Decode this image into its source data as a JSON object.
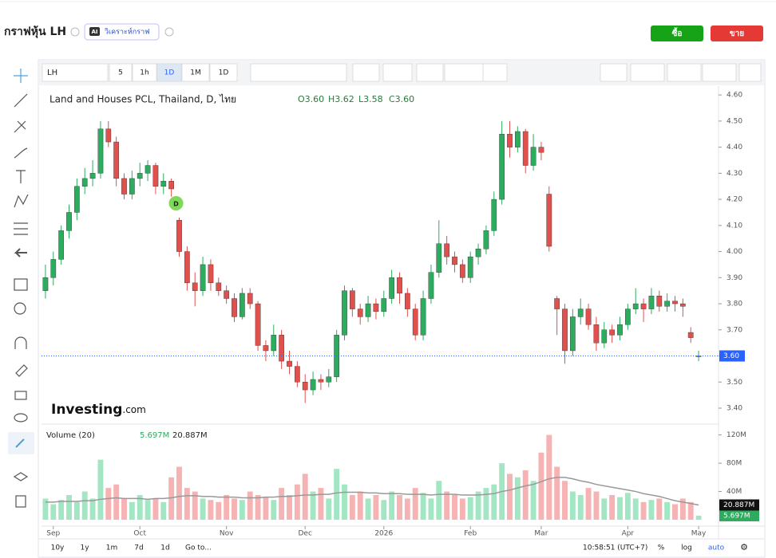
{
  "header": {
    "title": "กราฟหุ้น LH",
    "ai_badge": "AI",
    "ai_button": "วิเคราะห์กราฟ",
    "buy": "ซื้อ",
    "sell": "ขาย"
  },
  "toolbar": {
    "symbol": "LH",
    "intervals": [
      "5",
      "1h",
      "1D",
      "1M",
      "1D"
    ]
  },
  "chart_data": {
    "type": "candlestick",
    "title": "Land and Houses PCL, Thailand, D, ไทย",
    "ohlc_labels": [
      "O3.60",
      "H3.62",
      "L3.58",
      "C3.60"
    ],
    "event_marker": "D",
    "logo_main": "Investing",
    "logo_suffix": ".com",
    "up_color": "#2dab5f",
    "down_color": "#e0504d",
    "volume_up_color": "#a3e6c4",
    "volume_down_color": "#f6b3b3",
    "ma_color": "#999999",
    "grid": false,
    "xlim": [
      -0.5,
      83.5
    ],
    "xticks": [
      {
        "value": 1,
        "label": "Sep"
      },
      {
        "value": 12,
        "label": "Oct"
      },
      {
        "value": 23,
        "label": "Nov"
      },
      {
        "value": 33,
        "label": "Dec"
      },
      {
        "value": 43,
        "label": "2026"
      },
      {
        "value": 54,
        "label": "Feb"
      },
      {
        "value": 63,
        "label": "Mar"
      },
      {
        "value": 74,
        "label": "Apr"
      },
      {
        "value": 83,
        "label": "May"
      }
    ],
    "ylim": [
      3.345,
      4.634
    ],
    "yticks": [
      {
        "value": 4.6,
        "label": "4.60"
      },
      {
        "value": 4.5,
        "label": "4.50"
      },
      {
        "value": 4.4,
        "label": "4.40"
      },
      {
        "value": 4.3,
        "label": "4.30"
      },
      {
        "value": 4.2,
        "label": "4.20"
      },
      {
        "value": 4.1,
        "label": "4.10"
      },
      {
        "value": 4.0,
        "label": "4.00"
      },
      {
        "value": 3.9,
        "label": "3.90"
      },
      {
        "value": 3.8,
        "label": "3.80"
      },
      {
        "value": 3.7,
        "label": "3.70"
      },
      {
        "value": 3.6,
        "label": "3.60"
      },
      {
        "value": 3.5,
        "label": "3.50"
      },
      {
        "value": 3.4,
        "label": "3.40"
      }
    ],
    "last_price": {
      "value": 3.6,
      "label": "3.60"
    },
    "open": [
      3.85,
      3.9,
      3.97,
      4.08,
      4.15,
      4.25,
      4.28,
      4.3,
      4.47,
      4.42,
      4.28,
      4.22,
      4.28,
      4.3,
      4.33,
      4.25,
      4.27,
      4.12,
      4.0,
      3.88,
      3.85,
      3.95,
      3.88,
      3.85,
      3.82,
      3.75,
      3.84,
      3.8,
      3.64,
      3.62,
      3.68,
      3.58,
      3.56,
      3.5,
      3.47,
      3.51,
      3.5,
      3.52,
      3.68,
      3.85,
      3.78,
      3.75,
      3.8,
      3.77,
      3.82,
      3.9,
      3.84,
      3.78,
      3.68,
      3.82,
      3.92,
      4.03,
      3.98,
      3.95,
      3.9,
      3.98,
      4.01,
      4.08,
      4.2,
      4.45,
      4.4,
      4.46,
      4.33,
      4.4,
      4.22,
      3.82,
      3.78,
      3.62,
      3.75,
      3.78,
      3.72,
      3.65,
      3.7,
      3.68,
      3.72,
      3.78,
      3.8,
      3.78,
      3.83,
      3.79,
      3.81,
      3.8,
      3.69,
      3.6
    ],
    "high": [
      3.95,
      4.0,
      4.1,
      4.18,
      4.28,
      4.32,
      4.35,
      4.5,
      4.5,
      4.44,
      4.3,
      4.31,
      4.34,
      4.35,
      4.34,
      4.3,
      4.28,
      4.13,
      4.02,
      3.92,
      3.98,
      3.97,
      3.9,
      3.87,
      3.84,
      3.86,
      3.86,
      3.81,
      3.66,
      3.72,
      3.7,
      3.62,
      3.58,
      3.53,
      3.54,
      3.53,
      3.55,
      3.7,
      3.87,
      3.86,
      3.8,
      3.83,
      3.82,
      3.85,
      3.93,
      3.92,
      3.86,
      3.8,
      3.85,
      3.95,
      4.12,
      4.06,
      4.0,
      3.97,
      4.0,
      4.03,
      4.1,
      4.23,
      4.5,
      4.5,
      4.48,
      4.47,
      4.45,
      4.42,
      4.25,
      3.83,
      3.8,
      3.78,
      3.82,
      3.8,
      3.75,
      3.73,
      3.72,
      3.75,
      3.8,
      3.86,
      3.82,
      3.86,
      3.85,
      3.84,
      3.83,
      3.82,
      3.71,
      3.62
    ],
    "low": [
      3.82,
      3.87,
      3.95,
      4.05,
      4.12,
      4.22,
      4.25,
      4.28,
      4.4,
      4.25,
      4.2,
      4.2,
      4.25,
      4.27,
      4.22,
      4.22,
      4.21,
      3.98,
      3.85,
      3.79,
      3.83,
      3.85,
      3.83,
      3.8,
      3.73,
      3.74,
      3.78,
      3.62,
      3.58,
      3.6,
      3.55,
      3.53,
      3.48,
      3.42,
      3.45,
      3.47,
      3.48,
      3.5,
      3.66,
      3.75,
      3.72,
      3.73,
      3.74,
      3.75,
      3.8,
      3.8,
      3.75,
      3.66,
      3.66,
      3.8,
      3.9,
      3.95,
      3.92,
      3.88,
      3.88,
      3.95,
      3.99,
      4.06,
      4.18,
      4.36,
      4.38,
      4.3,
      4.31,
      4.35,
      4.0,
      3.68,
      3.57,
      3.6,
      3.72,
      3.7,
      3.62,
      3.63,
      3.65,
      3.66,
      3.7,
      3.76,
      3.73,
      3.76,
      3.77,
      3.77,
      3.77,
      3.75,
      3.65,
      3.58
    ],
    "close": [
      3.9,
      3.97,
      4.08,
      4.15,
      4.25,
      4.28,
      4.3,
      4.47,
      4.42,
      4.28,
      4.22,
      4.28,
      4.3,
      4.33,
      4.25,
      4.27,
      4.24,
      4.0,
      3.88,
      3.85,
      3.95,
      3.88,
      3.85,
      3.82,
      3.75,
      3.84,
      3.8,
      3.64,
      3.62,
      3.68,
      3.58,
      3.56,
      3.5,
      3.47,
      3.51,
      3.5,
      3.52,
      3.68,
      3.85,
      3.78,
      3.75,
      3.8,
      3.77,
      3.82,
      3.9,
      3.84,
      3.78,
      3.68,
      3.82,
      3.92,
      4.03,
      3.98,
      3.95,
      3.9,
      3.98,
      4.01,
      4.08,
      4.2,
      4.45,
      4.4,
      4.46,
      4.33,
      4.4,
      4.38,
      4.02,
      3.78,
      3.62,
      3.75,
      3.78,
      3.72,
      3.65,
      3.7,
      3.68,
      3.72,
      3.78,
      3.8,
      3.78,
      3.83,
      3.79,
      3.81,
      3.8,
      3.79,
      3.67,
      3.6
    ],
    "volume_title": "Volume (20)",
    "volume_legend": [
      {
        "value": 5.697,
        "label": "5.697M"
      },
      {
        "value": 20.887,
        "label": "20.887M"
      }
    ],
    "volume_ylim": [
      -9,
      132
    ],
    "volume_ticks": [
      {
        "value": 120,
        "label": "120M"
      },
      {
        "value": 80,
        "label": "80M"
      },
      {
        "value": 40,
        "label": "40M"
      }
    ],
    "volume": [
      30,
      22,
      28,
      35,
      25,
      40,
      30,
      85,
      45,
      50,
      30,
      25,
      35,
      28,
      30,
      25,
      60,
      75,
      45,
      40,
      30,
      28,
      25,
      35,
      30,
      28,
      40,
      35,
      32,
      28,
      45,
      35,
      50,
      65,
      40,
      45,
      30,
      72,
      50,
      35,
      40,
      30,
      35,
      28,
      40,
      35,
      30,
      45,
      38,
      30,
      55,
      40,
      35,
      30,
      32,
      40,
      45,
      50,
      80,
      65,
      60,
      70,
      55,
      95,
      120,
      75,
      55,
      40,
      35,
      45,
      40,
      30,
      35,
      32,
      38,
      30,
      25,
      28,
      30,
      25,
      22,
      30,
      25,
      5.697
    ],
    "volume_ma": [
      25,
      25,
      26,
      26,
      26,
      27,
      27,
      29,
      30,
      31,
      30,
      30,
      30,
      29,
      30,
      30,
      31,
      33,
      34,
      34,
      33,
      33,
      32,
      32,
      32,
      31,
      31,
      31,
      32,
      32,
      33,
      33,
      34,
      35,
      35,
      36,
      36,
      38,
      39,
      39,
      39,
      38,
      38,
      37,
      37,
      37,
      36,
      36,
      36,
      35,
      36,
      36,
      36,
      35,
      35,
      35,
      36,
      37,
      40,
      42,
      45,
      48,
      50,
      54,
      58,
      60,
      60,
      58,
      55,
      53,
      50,
      48,
      46,
      44,
      42,
      40,
      37,
      35,
      33,
      30,
      27,
      25,
      23,
      20.887
    ]
  },
  "footer": {
    "ranges": [
      "10y",
      "1y",
      "1m",
      "7d",
      "1d"
    ],
    "goto": "Go to...",
    "time": "10:58:51 (UTC+7)",
    "options": [
      "%",
      "log",
      "auto"
    ]
  }
}
